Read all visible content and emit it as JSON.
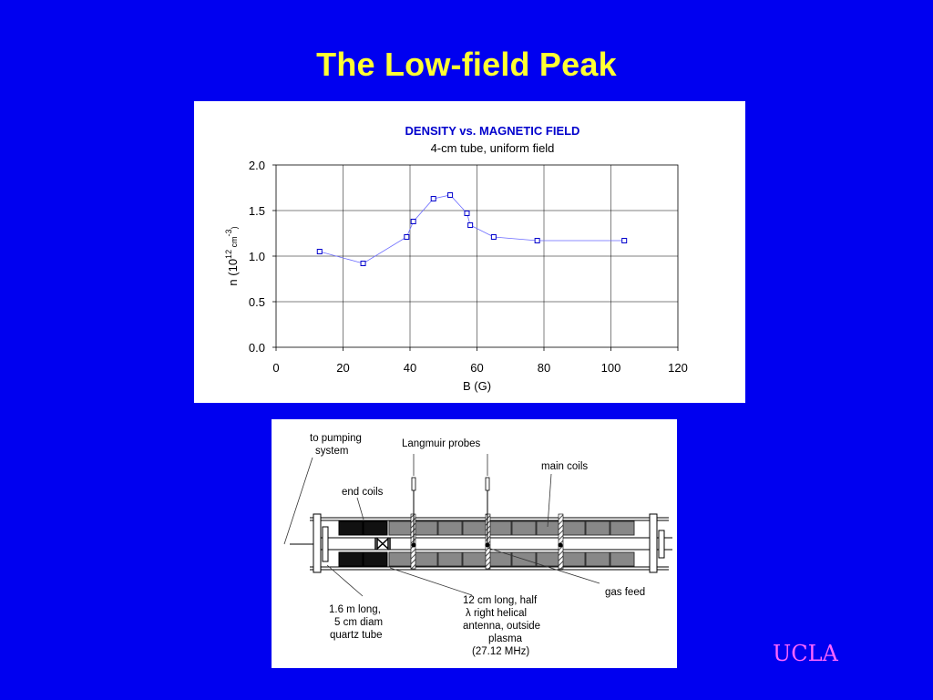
{
  "slide": {
    "title": "The Low-field Peak",
    "logo_text": "UCLA",
    "colors": {
      "background": "#0000f0",
      "title": "#ffff33",
      "logo": "#ff66ff"
    }
  },
  "chart_data": {
    "type": "line",
    "title": "DENSITY vs. MAGNETIC FIELD",
    "subtitle": "4-cm tube, uniform field",
    "xlabel": "B (G)",
    "ylabel": {
      "prefix": "n (10",
      "sup1": "12",
      "mid": " cm",
      "sup2": "-3",
      "suffix": ")"
    },
    "xlim": [
      0,
      120
    ],
    "ylim": [
      0,
      2.0
    ],
    "xticks": [
      "0",
      "20",
      "40",
      "60",
      "80",
      "100",
      "120"
    ],
    "yticks": [
      "0.0",
      "0.5",
      "1.0",
      "1.5",
      "2.0"
    ],
    "grid": true,
    "marker": "open-square",
    "colors": {
      "line": "#6a6aff",
      "marker": "#0000cc",
      "title": "#0000cc"
    },
    "series": [
      {
        "x": [
          13,
          26,
          39,
          41,
          47,
          52,
          57,
          58,
          65,
          78,
          104
        ],
        "y": [
          1.05,
          0.92,
          1.21,
          1.38,
          1.63,
          1.67,
          1.47,
          1.34,
          1.21,
          1.17,
          1.17
        ]
      }
    ]
  },
  "diagram": {
    "labels": {
      "pumping_line1": "to pumping",
      "pumping_line2": "system",
      "langmuir": "Langmuir probes",
      "main_coils": "main coils",
      "end_coils": "end coils",
      "gas_feed": "gas feed",
      "tube_line1": "1.6 m long,",
      "tube_line2": "5 cm diam",
      "tube_line3": "quartz tube",
      "antenna_line1": "12 cm long, half",
      "antenna_line2": "λ right helical",
      "antenna_line3": "antenna, outside",
      "antenna_line4": "plasma",
      "antenna_line5": "(27.12 MHz)"
    }
  }
}
